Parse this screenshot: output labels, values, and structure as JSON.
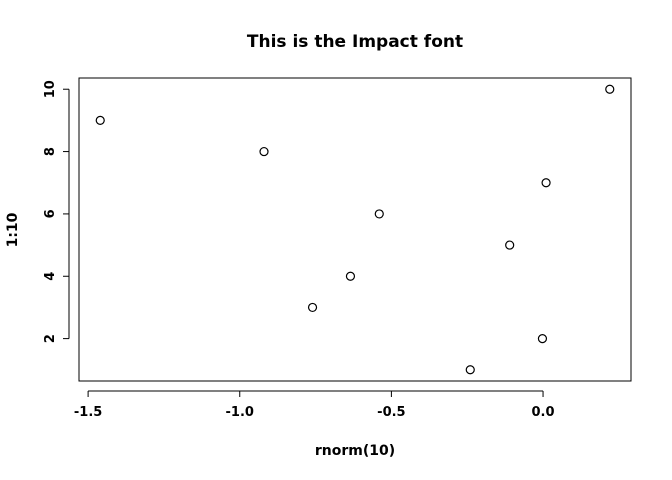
{
  "chart_data": {
    "type": "scatter",
    "title": "This is the Impact font",
    "xlabel": "rnorm(10)",
    "ylabel": "1:10",
    "x": [
      -0.24,
      -0.002,
      -0.76,
      -0.635,
      -0.11,
      -0.54,
      0.01,
      -0.92,
      -1.46,
      0.22
    ],
    "y": [
      1,
      2,
      3,
      4,
      5,
      6,
      7,
      8,
      9,
      10
    ],
    "xlim": [
      -1.53,
      0.29
    ],
    "ylim": [
      0.64,
      10.36
    ],
    "x_ticks": [
      -1.5,
      -1.0,
      -0.5,
      0.0
    ],
    "x_tick_labels": [
      "-1.5",
      "-1.0",
      "-0.5",
      "0.0"
    ],
    "y_ticks": [
      2,
      4,
      6,
      8,
      10
    ],
    "y_tick_labels": [
      "2",
      "4",
      "6",
      "8",
      "10"
    ],
    "grid": false,
    "marker": "open-circle"
  }
}
